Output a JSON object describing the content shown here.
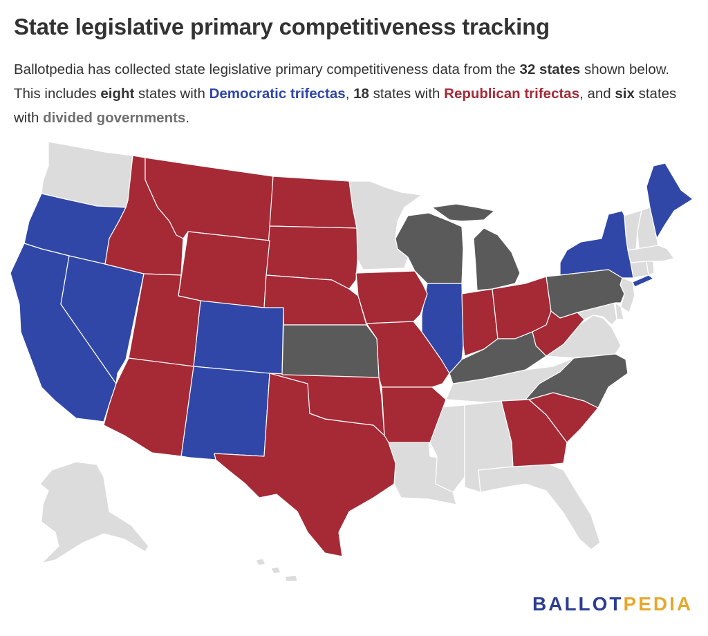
{
  "title": "State legislative primary competitiveness tracking",
  "subtitle": {
    "p1": "Ballotpedia has collected state legislative primary competitiveness data from the ",
    "n_states": "32 states",
    "p2": " shown below. This includes ",
    "n_dem": "eight",
    "p3": " states with ",
    "dem_label": "Democratic trifectas",
    "p4": ", ",
    "n_rep": "18",
    "p5": " states with ",
    "rep_label": "Republican trifectas",
    "p6": ", and ",
    "n_div": "six",
    "p7": " states with ",
    "div_label": "divided governments",
    "p8": "."
  },
  "logo": {
    "part1": "BALLOT",
    "part2": "PEDIA"
  },
  "colors": {
    "democratic": "#3047a8",
    "republican": "#a52a36",
    "divided": "#5a5a5a",
    "not_tracked": "#dcdcdc"
  },
  "states": {
    "democratic": [
      "Oregon",
      "California",
      "Nevada",
      "Colorado",
      "New Mexico",
      "Illinois",
      "New York",
      "Maine"
    ],
    "republican": [
      "Idaho",
      "Montana",
      "North Dakota",
      "South Dakota",
      "Wyoming",
      "Nebraska",
      "Utah",
      "Arizona",
      "Texas",
      "Oklahoma",
      "Iowa",
      "Missouri",
      "Arkansas",
      "Indiana",
      "Ohio",
      "West Virginia",
      "Georgia",
      "South Carolina"
    ],
    "divided": [
      "Wisconsin",
      "Michigan",
      "Kansas",
      "Kentucky",
      "Pennsylvania",
      "North Carolina"
    ]
  }
}
